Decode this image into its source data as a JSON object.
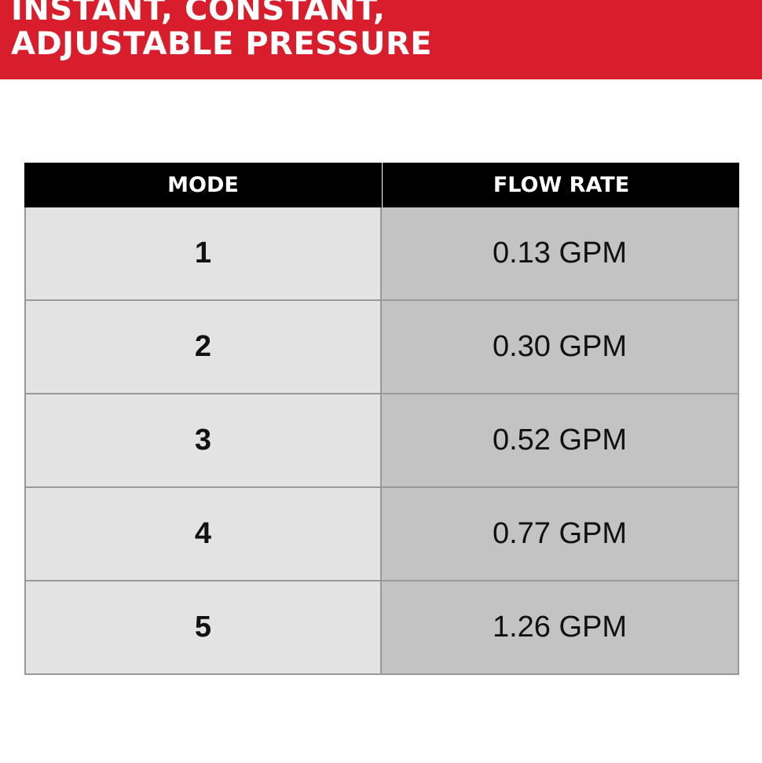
{
  "title": {
    "line1": "INSTANT, CONSTANT,",
    "line2": "ADJUSTABLE PRESSURE"
  },
  "colors": {
    "banner": "#d81e2c",
    "header": "#000000"
  },
  "table": {
    "headers": [
      "MODE",
      "FLOW RATE"
    ],
    "rows": [
      [
        "1",
        "0.13 GPM"
      ],
      [
        "2",
        "0.30 GPM"
      ],
      [
        "3",
        "0.52 GPM"
      ],
      [
        "4",
        "0.77 GPM"
      ],
      [
        "5",
        "1.26 GPM"
      ]
    ]
  }
}
